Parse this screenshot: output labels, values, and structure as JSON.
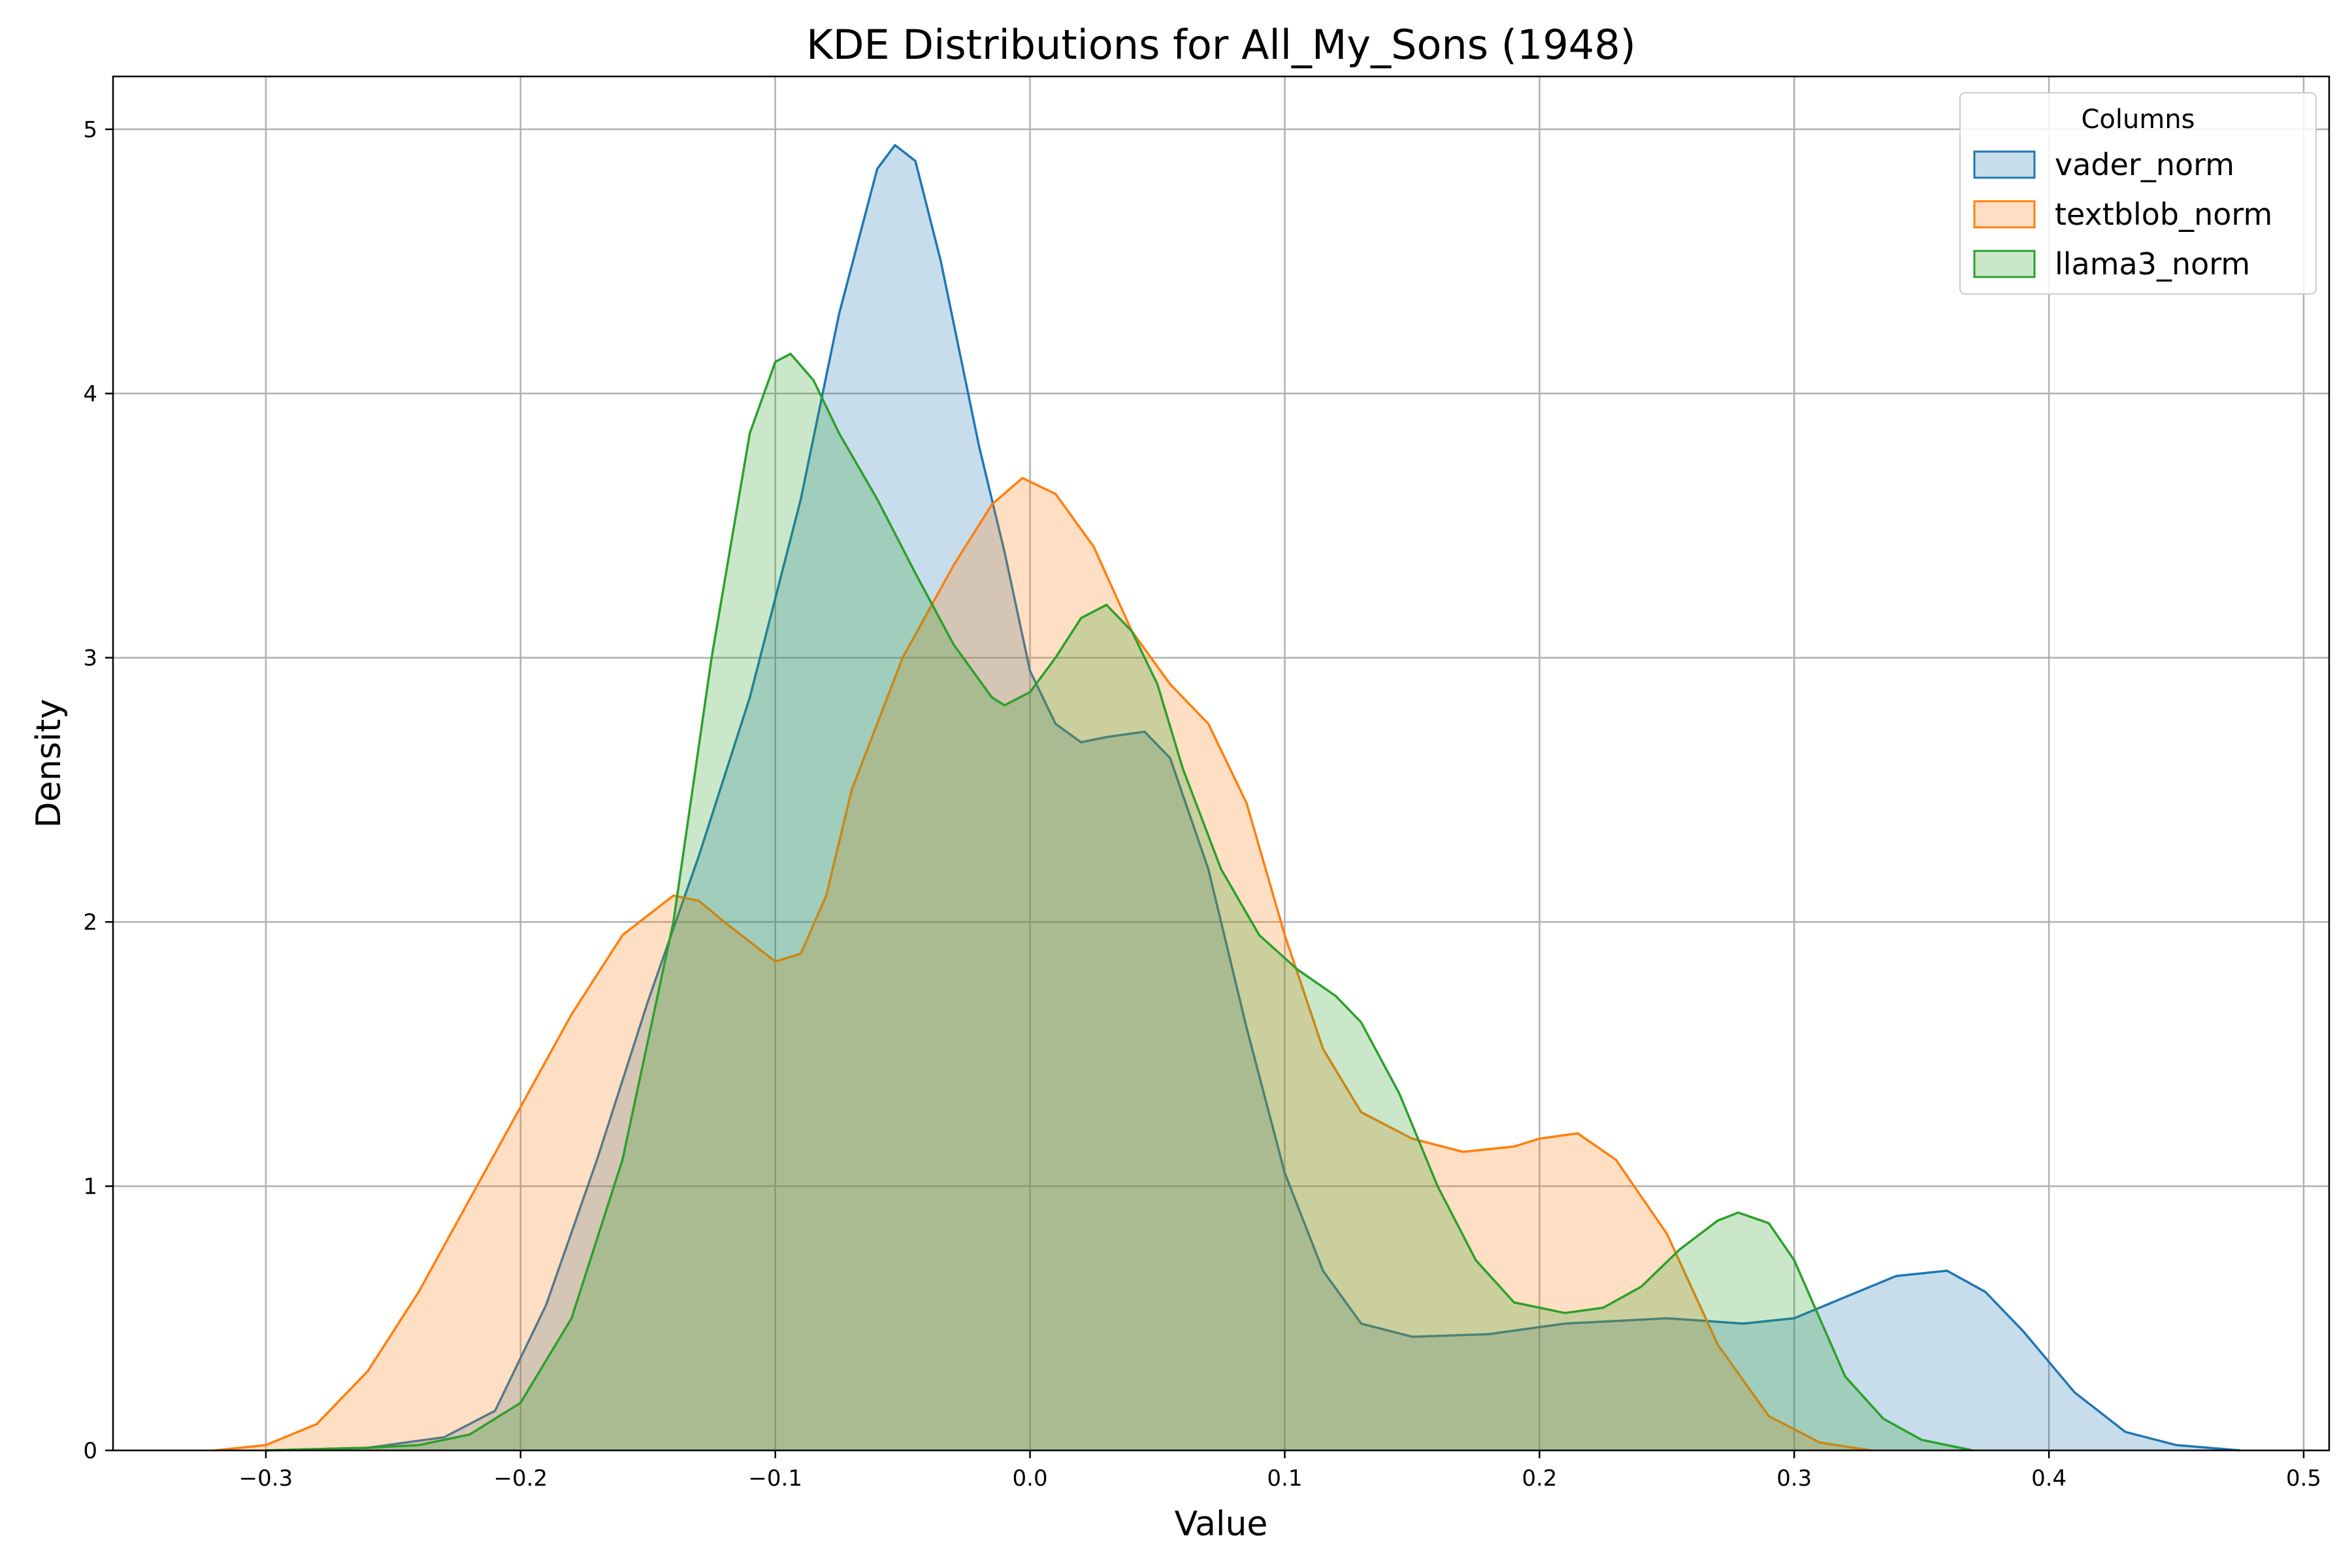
{
  "chart_data": {
    "type": "area",
    "title": "KDE Distributions for All_My_Sons (1948)",
    "xlabel": "Value",
    "ylabel": "Density",
    "xlim": [
      -0.36,
      0.51
    ],
    "ylim": [
      0,
      5.2
    ],
    "x_ticks": [
      -0.3,
      -0.2,
      -0.1,
      0.0,
      0.1,
      0.2,
      0.3,
      0.4,
      0.5
    ],
    "x_tick_labels": [
      "−0.3",
      "−0.2",
      "−0.1",
      "0.0",
      "0.1",
      "0.2",
      "0.3",
      "0.4",
      "0.5"
    ],
    "y_ticks": [
      0,
      1,
      2,
      3,
      4,
      5
    ],
    "y_tick_labels": [
      "0",
      "1",
      "2",
      "3",
      "4",
      "5"
    ],
    "grid": true,
    "legend": {
      "title": "Columns",
      "placement": "top-right"
    },
    "series": [
      {
        "name": "vader_norm",
        "color": "#1f77b4",
        "points": [
          [
            -0.3,
            0
          ],
          [
            -0.26,
            0.01
          ],
          [
            -0.23,
            0.05
          ],
          [
            -0.21,
            0.15
          ],
          [
            -0.19,
            0.55
          ],
          [
            -0.17,
            1.1
          ],
          [
            -0.15,
            1.7
          ],
          [
            -0.13,
            2.25
          ],
          [
            -0.11,
            2.85
          ],
          [
            -0.09,
            3.6
          ],
          [
            -0.075,
            4.3
          ],
          [
            -0.06,
            4.85
          ],
          [
            -0.053,
            4.94
          ],
          [
            -0.045,
            4.88
          ],
          [
            -0.035,
            4.5
          ],
          [
            -0.02,
            3.8
          ],
          [
            -0.01,
            3.4
          ],
          [
            0.0,
            2.95
          ],
          [
            0.01,
            2.75
          ],
          [
            0.02,
            2.68
          ],
          [
            0.03,
            2.7
          ],
          [
            0.045,
            2.72
          ],
          [
            0.055,
            2.62
          ],
          [
            0.07,
            2.2
          ],
          [
            0.085,
            1.6
          ],
          [
            0.1,
            1.05
          ],
          [
            0.115,
            0.68
          ],
          [
            0.13,
            0.48
          ],
          [
            0.15,
            0.43
          ],
          [
            0.18,
            0.44
          ],
          [
            0.21,
            0.48
          ],
          [
            0.25,
            0.5
          ],
          [
            0.28,
            0.48
          ],
          [
            0.3,
            0.5
          ],
          [
            0.32,
            0.58
          ],
          [
            0.34,
            0.66
          ],
          [
            0.36,
            0.68
          ],
          [
            0.375,
            0.6
          ],
          [
            0.39,
            0.45
          ],
          [
            0.41,
            0.22
          ],
          [
            0.43,
            0.07
          ],
          [
            0.45,
            0.02
          ],
          [
            0.475,
            0
          ]
        ]
      },
      {
        "name": "textblob_norm",
        "color": "#ff7f0e",
        "points": [
          [
            -0.32,
            0
          ],
          [
            -0.3,
            0.02
          ],
          [
            -0.28,
            0.1
          ],
          [
            -0.26,
            0.3
          ],
          [
            -0.24,
            0.6
          ],
          [
            -0.22,
            0.95
          ],
          [
            -0.2,
            1.3
          ],
          [
            -0.18,
            1.65
          ],
          [
            -0.16,
            1.95
          ],
          [
            -0.14,
            2.1
          ],
          [
            -0.13,
            2.08
          ],
          [
            -0.12,
            2.0
          ],
          [
            -0.1,
            1.85
          ],
          [
            -0.09,
            1.88
          ],
          [
            -0.08,
            2.1
          ],
          [
            -0.07,
            2.5
          ],
          [
            -0.05,
            3.0
          ],
          [
            -0.03,
            3.35
          ],
          [
            -0.015,
            3.58
          ],
          [
            -0.003,
            3.68
          ],
          [
            0.01,
            3.62
          ],
          [
            0.025,
            3.42
          ],
          [
            0.04,
            3.1
          ],
          [
            0.055,
            2.9
          ],
          [
            0.07,
            2.75
          ],
          [
            0.085,
            2.45
          ],
          [
            0.1,
            1.95
          ],
          [
            0.115,
            1.52
          ],
          [
            0.13,
            1.28
          ],
          [
            0.15,
            1.18
          ],
          [
            0.17,
            1.13
          ],
          [
            0.19,
            1.15
          ],
          [
            0.2,
            1.18
          ],
          [
            0.215,
            1.2
          ],
          [
            0.23,
            1.1
          ],
          [
            0.25,
            0.82
          ],
          [
            0.27,
            0.4
          ],
          [
            0.29,
            0.13
          ],
          [
            0.31,
            0.03
          ],
          [
            0.33,
            0
          ]
        ]
      },
      {
        "name": "llama3_norm",
        "color": "#2ca02c",
        "points": [
          [
            -0.3,
            0
          ],
          [
            -0.26,
            0.01
          ],
          [
            -0.24,
            0.02
          ],
          [
            -0.22,
            0.06
          ],
          [
            -0.2,
            0.18
          ],
          [
            -0.18,
            0.5
          ],
          [
            -0.16,
            1.1
          ],
          [
            -0.14,
            2.0
          ],
          [
            -0.125,
            3.0
          ],
          [
            -0.11,
            3.85
          ],
          [
            -0.1,
            4.12
          ],
          [
            -0.094,
            4.15
          ],
          [
            -0.085,
            4.05
          ],
          [
            -0.075,
            3.85
          ],
          [
            -0.06,
            3.6
          ],
          [
            -0.045,
            3.32
          ],
          [
            -0.03,
            3.05
          ],
          [
            -0.015,
            2.85
          ],
          [
            -0.01,
            2.82
          ],
          [
            0.0,
            2.87
          ],
          [
            0.01,
            3.0
          ],
          [
            0.02,
            3.15
          ],
          [
            0.03,
            3.2
          ],
          [
            0.04,
            3.1
          ],
          [
            0.05,
            2.9
          ],
          [
            0.06,
            2.58
          ],
          [
            0.075,
            2.2
          ],
          [
            0.09,
            1.95
          ],
          [
            0.105,
            1.82
          ],
          [
            0.12,
            1.72
          ],
          [
            0.13,
            1.62
          ],
          [
            0.145,
            1.35
          ],
          [
            0.16,
            1.0
          ],
          [
            0.175,
            0.72
          ],
          [
            0.19,
            0.56
          ],
          [
            0.21,
            0.52
          ],
          [
            0.225,
            0.54
          ],
          [
            0.24,
            0.62
          ],
          [
            0.255,
            0.76
          ],
          [
            0.27,
            0.87
          ],
          [
            0.278,
            0.9
          ],
          [
            0.29,
            0.86
          ],
          [
            0.3,
            0.72
          ],
          [
            0.31,
            0.5
          ],
          [
            0.32,
            0.28
          ],
          [
            0.335,
            0.12
          ],
          [
            0.35,
            0.04
          ],
          [
            0.37,
            0
          ]
        ]
      }
    ]
  }
}
